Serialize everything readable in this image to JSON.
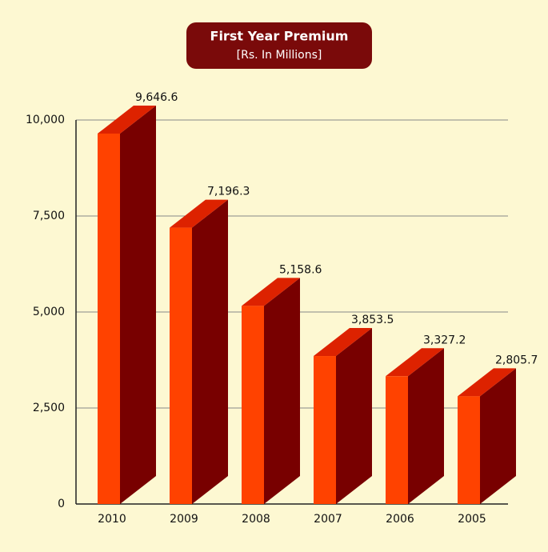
{
  "chart_data": {
    "type": "bar3d",
    "title": "First Year Premium",
    "subtitle": "[Rs. In Millions]",
    "categories": [
      "2010",
      "2009",
      "2008",
      "2007",
      "2006",
      "2005"
    ],
    "values": [
      9646.6,
      7196.3,
      5158.6,
      3853.5,
      3327.2,
      2805.7
    ],
    "value_labels": [
      "9,646.6",
      "7,196.3",
      "5,158.6",
      "3,853.5",
      "3,327.2",
      "2,805.7"
    ],
    "colors": {
      "front": "#ff4200",
      "side": "#780000",
      "top": "#dd2200"
    },
    "ylim": [
      0,
      10000
    ],
    "yticks": [
      0,
      {
        "value": 2500,
        "label": "2,500"
      },
      {
        "value": 5000,
        "label": "5,000"
      },
      {
        "value": 7500,
        "label": "7,500"
      },
      {
        "value": 10000,
        "label": "10,000"
      }
    ],
    "grid": true
  }
}
